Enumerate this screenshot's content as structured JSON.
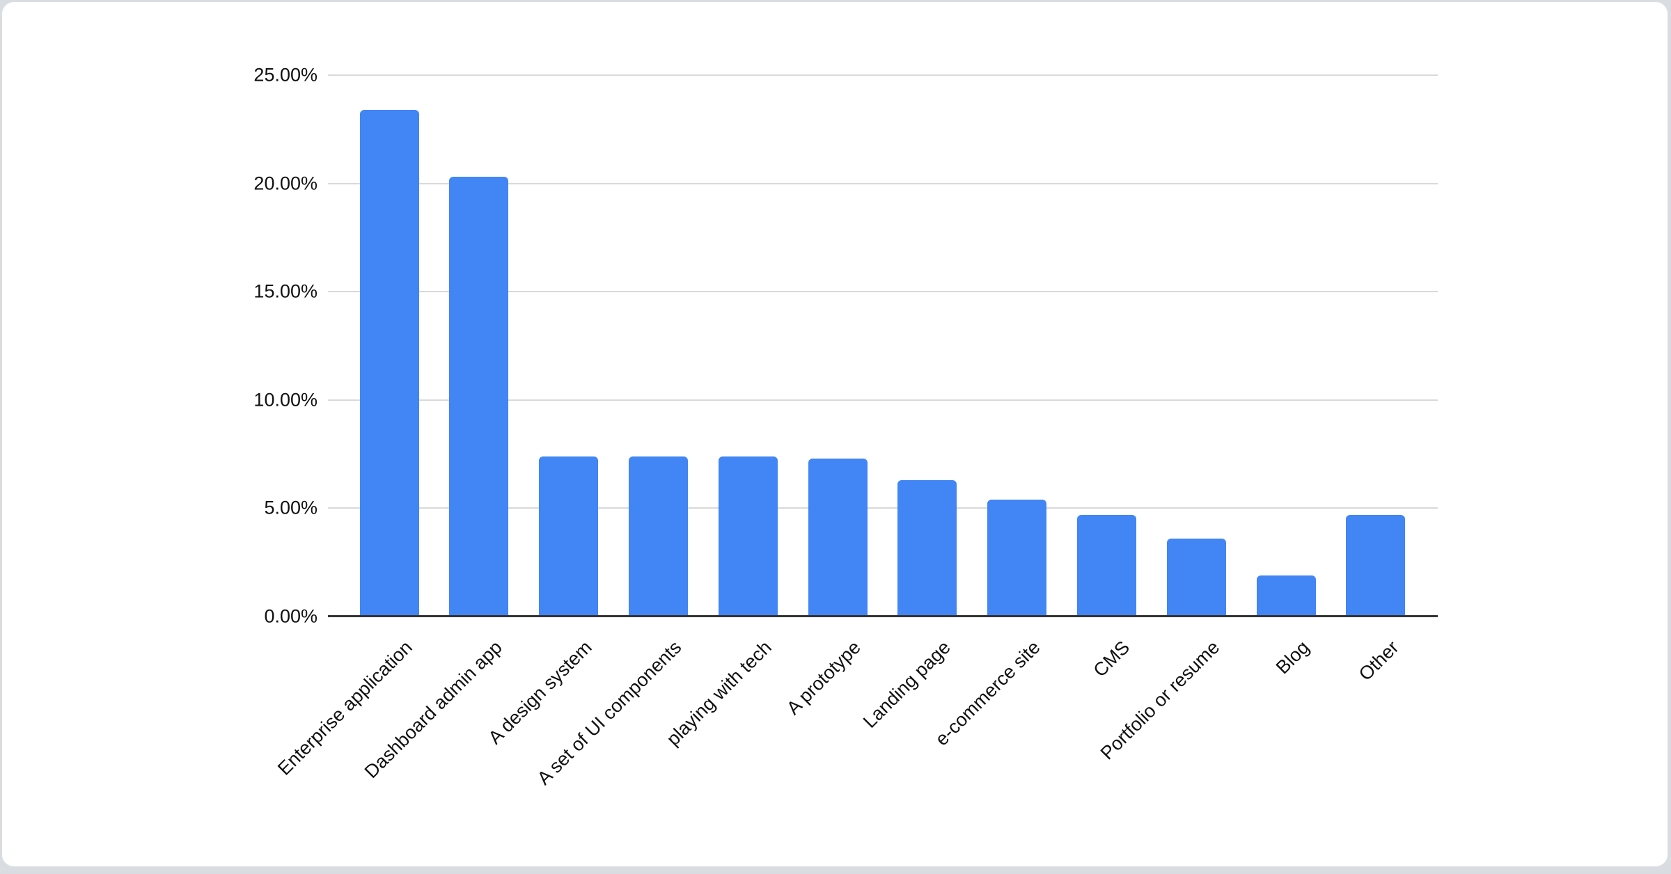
{
  "page": {
    "background_color": "#d9dce0",
    "card_background_color": "#ffffff",
    "card_border_color": "#dcdfe3"
  },
  "chart_data": {
    "type": "bar",
    "title": "",
    "categories": [
      "Enterprise application",
      "Dashboard admin app",
      "A design system",
      "A set of UI components",
      "playing with tech",
      "A prototype",
      "Landing page",
      "e-commerce site",
      "CMS",
      "Portfolio or resume",
      "Blog",
      "Other"
    ],
    "values": [
      23.4,
      20.3,
      7.4,
      7.4,
      7.4,
      7.3,
      6.3,
      5.4,
      4.7,
      3.6,
      1.9,
      4.7
    ],
    "value_unit": "%",
    "y_ticks": [
      {
        "label": "25.00%",
        "value": 25
      },
      {
        "label": "20.00%",
        "value": 20
      },
      {
        "label": "15.00%",
        "value": 15
      },
      {
        "label": "10.00%",
        "value": 10
      },
      {
        "label": "5.00%",
        "value": 5
      },
      {
        "label": "0.00%",
        "value": 0
      }
    ],
    "ylim": [
      0,
      25
    ],
    "xlabel": "",
    "ylabel": "",
    "legend": "none",
    "grid": true,
    "x_label_rotation_deg": -45,
    "bar_color": "#4285f4",
    "gridline_color": "#d9d9d9",
    "axis_line_color": "#333333",
    "tick_label_color": "#111111"
  }
}
